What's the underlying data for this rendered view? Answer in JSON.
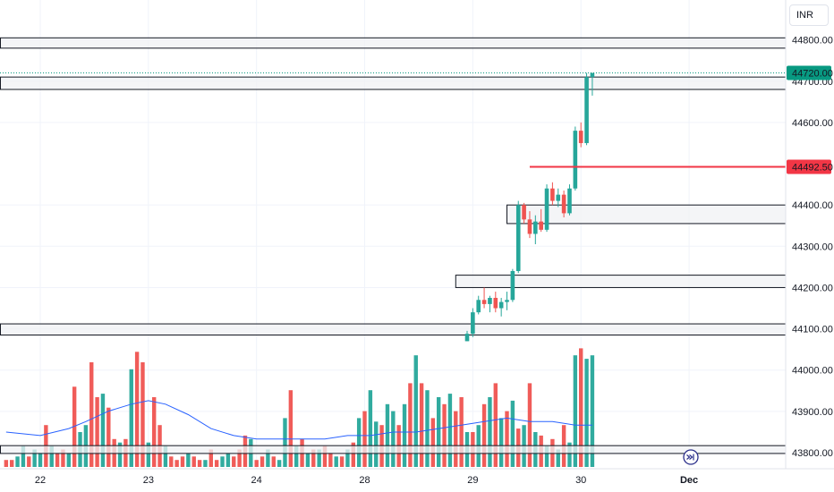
{
  "currency": "INR",
  "colors": {
    "up": "#26a69a",
    "down": "#ef5350",
    "ma": "#2962ff",
    "last_label": "#089981",
    "level_line": "#f23645",
    "zone_border": "#131722",
    "zone_fill": "#f0f1f4"
  },
  "chart_data": {
    "type": "candlestick",
    "y_ticks": [
      "44800.00",
      "44700.00",
      "44600.00",
      "44400.00",
      "44300.00",
      "44200.00",
      "44100.00",
      "44000.00",
      "43900.00",
      "43800.00"
    ],
    "y_range": [
      43780,
      44880
    ],
    "x_ticks": [
      {
        "label": "22",
        "index": 0
      },
      {
        "label": "23",
        "index": 19
      },
      {
        "label": "24",
        "index": 38
      },
      {
        "label": "28",
        "index": 57
      },
      {
        "label": "29",
        "index": 76
      },
      {
        "label": "30",
        "index": 95
      },
      {
        "label": "Dec",
        "index": 114
      }
    ],
    "last_price": "44720.00",
    "marked_level": {
      "price": 44492.5,
      "label": "44492.50"
    },
    "zones": [
      {
        "top": 44805,
        "bottom": 44780,
        "start_index": -7
      },
      {
        "top": 44710,
        "bottom": 44680,
        "start_index": -7
      },
      {
        "top": 44400,
        "bottom": 44355,
        "start_index": 82
      },
      {
        "top": 44230,
        "bottom": 44200,
        "start_index": 73
      },
      {
        "top": 44112,
        "bottom": 44085,
        "start_index": -7
      },
      {
        "top": 43817,
        "bottom": 43798,
        "start_index": -7
      }
    ],
    "candles": [
      [
        75,
        44070,
        44095,
        44070,
        44088
      ],
      [
        76,
        44088,
        44150,
        44080,
        44140
      ],
      [
        77,
        44140,
        44180,
        44135,
        44170
      ],
      [
        78,
        44170,
        44200,
        44150,
        44160
      ],
      [
        79,
        44160,
        44180,
        44140,
        44175
      ],
      [
        80,
        44175,
        44190,
        44140,
        44150
      ],
      [
        81,
        44150,
        44175,
        44130,
        44165
      ],
      [
        82,
        44165,
        44190,
        44145,
        44170
      ],
      [
        83,
        44170,
        44245,
        44165,
        44240
      ],
      [
        84,
        44240,
        44410,
        44235,
        44400
      ],
      [
        85,
        44400,
        44405,
        44355,
        44365
      ],
      [
        86,
        44365,
        44385,
        44320,
        44330
      ],
      [
        87,
        44330,
        44375,
        44305,
        44360
      ],
      [
        88,
        44360,
        44390,
        44335,
        44340
      ],
      [
        89,
        44340,
        44450,
        44335,
        44440
      ],
      [
        90,
        44440,
        44455,
        44400,
        44410
      ],
      [
        91,
        44410,
        44440,
        44395,
        44425
      ],
      [
        92,
        44425,
        44435,
        44370,
        44380
      ],
      [
        93,
        44380,
        44450,
        44375,
        44440
      ],
      [
        94,
        44440,
        44590,
        44435,
        44580
      ],
      [
        95,
        44580,
        44600,
        44540,
        44550
      ],
      [
        96,
        44550,
        44720,
        44545,
        44710
      ],
      [
        97,
        44710,
        44720,
        44665,
        44720
      ]
    ],
    "volumes": [
      [
        -6,
        2,
        0
      ],
      [
        -5,
        2,
        0
      ],
      [
        -4,
        3,
        1
      ],
      [
        -3,
        6,
        1
      ],
      [
        -2,
        3,
        0
      ],
      [
        -1,
        5,
        1
      ],
      [
        0,
        4,
        1
      ],
      [
        1,
        12,
        0
      ],
      [
        2,
        6,
        1
      ],
      [
        3,
        4,
        0
      ],
      [
        4,
        5,
        0
      ],
      [
        5,
        4,
        1
      ],
      [
        6,
        23,
        0
      ],
      [
        7,
        10,
        1
      ],
      [
        8,
        12,
        1
      ],
      [
        9,
        30,
        0
      ],
      [
        10,
        20,
        0
      ],
      [
        11,
        21,
        1
      ],
      [
        12,
        17,
        0
      ],
      [
        13,
        8,
        0
      ],
      [
        14,
        7,
        1
      ],
      [
        15,
        8,
        0
      ],
      [
        16,
        28,
        1
      ],
      [
        17,
        33,
        0
      ],
      [
        18,
        30,
        0
      ],
      [
        19,
        7,
        1
      ],
      [
        20,
        20,
        0
      ],
      [
        21,
        12,
        0
      ],
      [
        22,
        6,
        1
      ],
      [
        23,
        3,
        0
      ],
      [
        24,
        2,
        0
      ],
      [
        25,
        3,
        0
      ],
      [
        26,
        4,
        1
      ],
      [
        27,
        3,
        0
      ],
      [
        28,
        2,
        0
      ],
      [
        29,
        2,
        1
      ],
      [
        30,
        5,
        0
      ],
      [
        31,
        2,
        0
      ],
      [
        32,
        3,
        1
      ],
      [
        33,
        4,
        1
      ],
      [
        34,
        3,
        0
      ],
      [
        35,
        5,
        0
      ],
      [
        36,
        9,
        0
      ],
      [
        37,
        8,
        1
      ],
      [
        38,
        2,
        0
      ],
      [
        39,
        3,
        0
      ],
      [
        40,
        5,
        1
      ],
      [
        41,
        3,
        0
      ],
      [
        42,
        2,
        1
      ],
      [
        43,
        14,
        1
      ],
      [
        44,
        22,
        0
      ],
      [
        45,
        6,
        1
      ],
      [
        46,
        8,
        0
      ],
      [
        47,
        4,
        1
      ],
      [
        48,
        5,
        0
      ],
      [
        49,
        5,
        1
      ],
      [
        50,
        6,
        0
      ],
      [
        51,
        4,
        0
      ],
      [
        52,
        3,
        1
      ],
      [
        53,
        3,
        0
      ],
      [
        54,
        5,
        1
      ],
      [
        55,
        7,
        0
      ],
      [
        56,
        14,
        1
      ],
      [
        57,
        16,
        0
      ],
      [
        58,
        22,
        1
      ],
      [
        59,
        13,
        1
      ],
      [
        60,
        12,
        0
      ],
      [
        61,
        18,
        1
      ],
      [
        62,
        16,
        1
      ],
      [
        63,
        12,
        0
      ],
      [
        64,
        18,
        1
      ],
      [
        65,
        24,
        0
      ],
      [
        66,
        32,
        1
      ],
      [
        67,
        24,
        0
      ],
      [
        68,
        22,
        1
      ],
      [
        69,
        14,
        0
      ],
      [
        70,
        20,
        1
      ],
      [
        71,
        18,
        0
      ],
      [
        72,
        21,
        1
      ],
      [
        73,
        16,
        0
      ],
      [
        74,
        20,
        0
      ],
      [
        75,
        10,
        1
      ],
      [
        76,
        10,
        0
      ],
      [
        77,
        12,
        1
      ],
      [
        78,
        18,
        0
      ],
      [
        79,
        20,
        1
      ],
      [
        80,
        24,
        0
      ],
      [
        81,
        14,
        1
      ],
      [
        82,
        16,
        0
      ],
      [
        83,
        19,
        1
      ],
      [
        84,
        11,
        0
      ],
      [
        85,
        12,
        1
      ],
      [
        86,
        24,
        0
      ],
      [
        87,
        10,
        1
      ],
      [
        88,
        9,
        0
      ],
      [
        89,
        6,
        1
      ],
      [
        90,
        8,
        0
      ],
      [
        91,
        5,
        1
      ],
      [
        92,
        12,
        0
      ],
      [
        93,
        7,
        1
      ],
      [
        94,
        32,
        1
      ],
      [
        95,
        34,
        0
      ],
      [
        96,
        31,
        1
      ],
      [
        97,
        32,
        1
      ]
    ],
    "ma_points": [
      [
        -6,
        10
      ],
      [
        0,
        9
      ],
      [
        5,
        11
      ],
      [
        8,
        13
      ],
      [
        12,
        16
      ],
      [
        16,
        18
      ],
      [
        19,
        19
      ],
      [
        22,
        18
      ],
      [
        26,
        15
      ],
      [
        30,
        11
      ],
      [
        34,
        9
      ],
      [
        38,
        8
      ],
      [
        42,
        8
      ],
      [
        46,
        8
      ],
      [
        50,
        8
      ],
      [
        54,
        9
      ],
      [
        58,
        9
      ],
      [
        62,
        10
      ],
      [
        66,
        10
      ],
      [
        70,
        11
      ],
      [
        74,
        12
      ],
      [
        78,
        13
      ],
      [
        82,
        14
      ],
      [
        86,
        13
      ],
      [
        90,
        13
      ],
      [
        94,
        12
      ],
      [
        97,
        12
      ]
    ]
  }
}
